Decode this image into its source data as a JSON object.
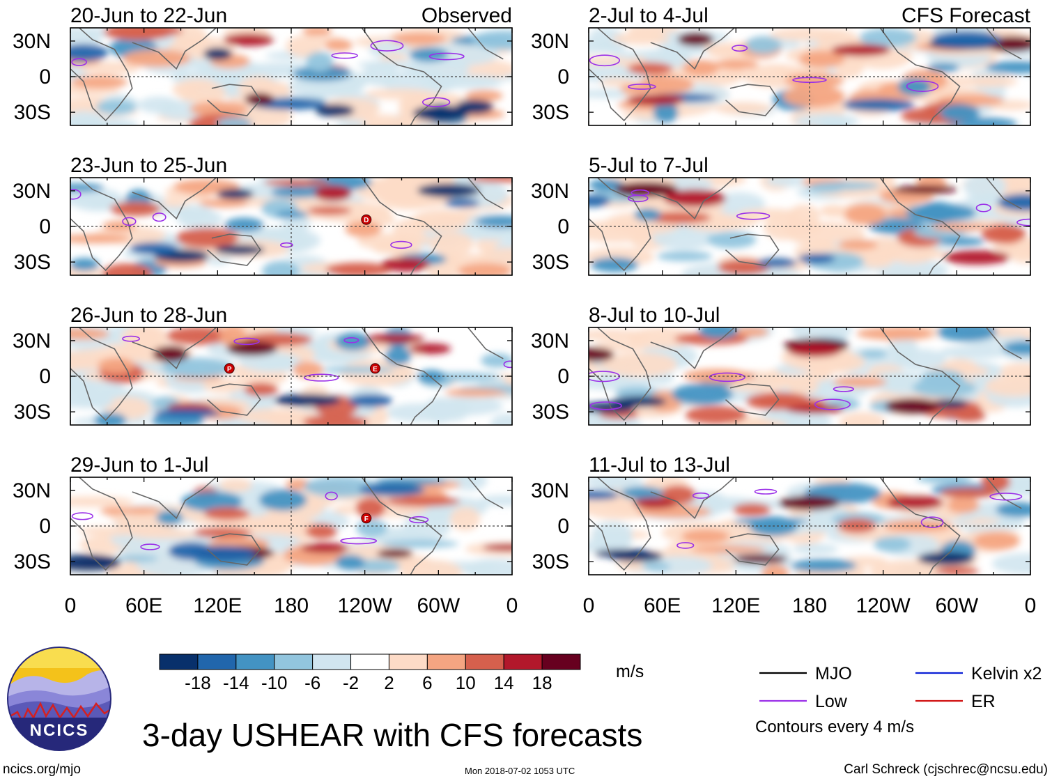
{
  "chart_data": {
    "type": "heatmap",
    "title": "3-day USHEAR with CFS forecasts",
    "variable": "USHEAR",
    "units": "m/s",
    "x_ticks": [
      "0",
      "60E",
      "120E",
      "180",
      "120W",
      "60W",
      "0"
    ],
    "y_ticks": [
      "30N",
      "0",
      "30S"
    ],
    "observed_label": "Observed",
    "forecast_label": "CFS Forecast",
    "observed_panels": [
      {
        "period": "20-Jun to 22-Jun"
      },
      {
        "period": "23-Jun to 25-Jun",
        "storms": [
          "D"
        ]
      },
      {
        "period": "26-Jun to 28-Jun",
        "storms": [
          "P",
          "E"
        ]
      },
      {
        "period": "29-Jun to 1-Jul",
        "storms": [
          "F"
        ]
      }
    ],
    "forecast_panels": [
      {
        "period": "2-Jul to 4-Jul"
      },
      {
        "period": "5-Jul to 7-Jul"
      },
      {
        "period": "8-Jul to 10-Jul"
      },
      {
        "period": "11-Jul to 13-Jul"
      }
    ],
    "colorbar": {
      "ticks": [
        "-18",
        "-14",
        "-10",
        "-6",
        "-2",
        "2",
        "6",
        "10",
        "14",
        "18"
      ],
      "colors": [
        "#08306b",
        "#2166ac",
        "#4393c3",
        "#92c5de",
        "#d1e5f0",
        "#ffffff",
        "#fddbc7",
        "#f4a582",
        "#d6604d",
        "#b2182b",
        "#67001f"
      ]
    },
    "legend": [
      {
        "label": "MJO",
        "color": "#000000"
      },
      {
        "label": "Kelvin x2",
        "color": "#0a1fd6"
      },
      {
        "label": "Low",
        "color": "#9b30e8"
      },
      {
        "label": "ER",
        "color": "#d01010"
      }
    ],
    "contour_note": "Contours every 4 m/s"
  },
  "branding": {
    "logo_text": "NCICS",
    "site": "ncics.org/mjo",
    "timestamp": "Mon 2018-07-02 1053 UTC",
    "credit": "Carl Schreck (cjschrec@ncsu.edu)"
  }
}
